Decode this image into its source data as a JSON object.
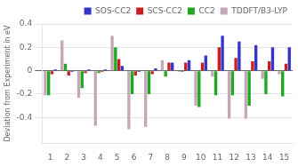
{
  "chart_data": {
    "type": "bar",
    "categories": [
      "1",
      "2",
      "3",
      "4",
      "5",
      "6",
      "7",
      "8",
      "9",
      "10",
      "11",
      "12",
      "13",
      "14",
      "15"
    ],
    "series": [
      {
        "name": "TDDFT/B3-LYP",
        "color": "#c4a8b8",
        "values": [
          -0.21,
          0.26,
          -0.23,
          -0.47,
          0.3,
          -0.5,
          -0.48,
          0.09,
          -0.01,
          -0.3,
          -0.05,
          -0.41,
          -0.41,
          -0.07,
          -0.03
        ]
      },
      {
        "name": "CC2",
        "color": "#20a820",
        "values": [
          -0.21,
          0.06,
          -0.15,
          -0.02,
          0.2,
          -0.2,
          -0.2,
          -0.05,
          -0.01,
          -0.31,
          -0.21,
          -0.21,
          -0.3,
          -0.2,
          -0.22
        ]
      },
      {
        "name": "SCS-CC2",
        "color": "#c82020",
        "values": [
          -0.03,
          -0.04,
          -0.02,
          -0.01,
          0.1,
          -0.04,
          -0.03,
          0.07,
          0.07,
          0.07,
          0.2,
          0.11,
          0.08,
          0.08,
          0.06
        ]
      },
      {
        "name": "SOS-CC2",
        "color": "#3535c8",
        "values": [
          0.01,
          -0.01,
          0.01,
          0.01,
          0.04,
          -0.01,
          0.02,
          0.07,
          0.09,
          0.13,
          0.3,
          0.25,
          0.22,
          0.2,
          0.2
        ]
      }
    ],
    "ylabel": "Deviation from Experiment in eV",
    "ylim": [
      -0.62,
      0.4
    ],
    "yticks": [
      -0.4,
      -0.2,
      0,
      0.2,
      0.4
    ],
    "grid": true,
    "legend": "upper right"
  }
}
